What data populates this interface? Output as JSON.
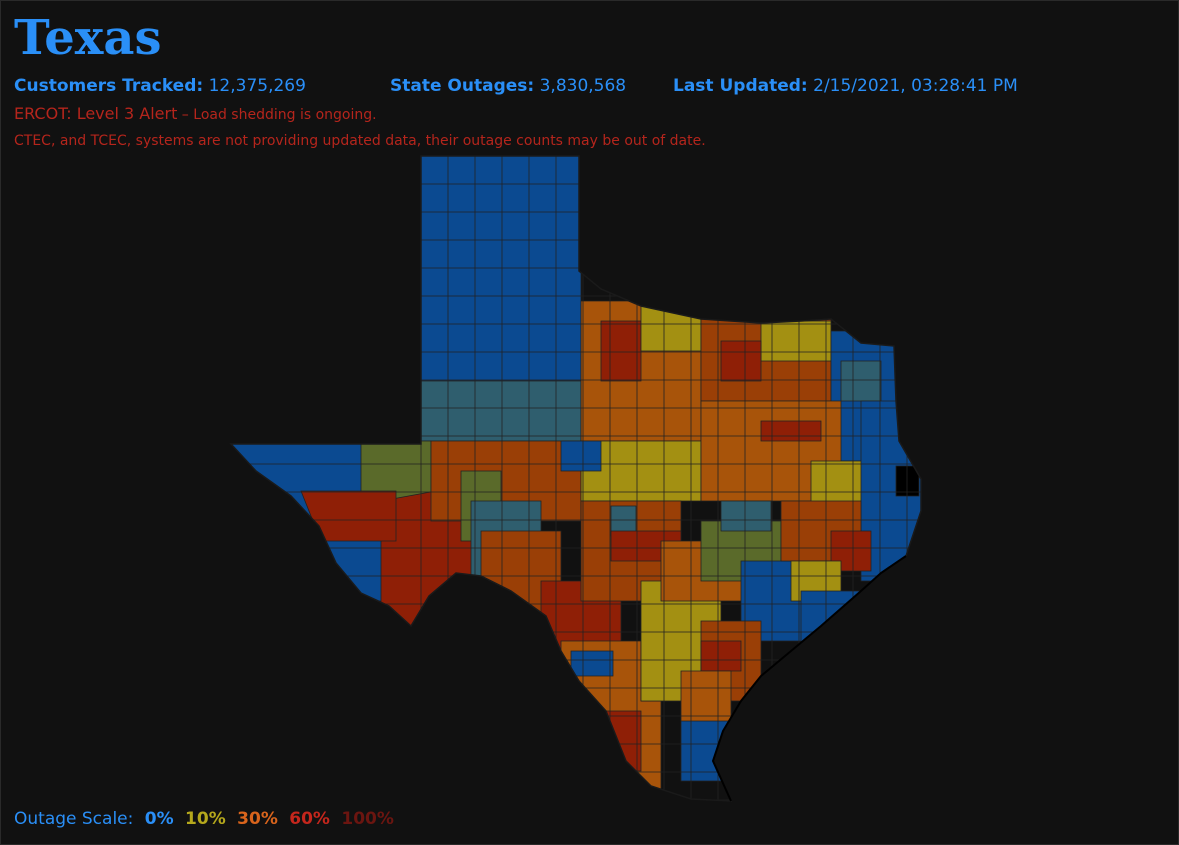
{
  "title": "Texas",
  "stats": {
    "customers_label": "Customers Tracked:",
    "customers_value": "12,375,269",
    "outages_label": "State Outages:",
    "outages_value": "3,830,568",
    "updated_label": "Last Updated:",
    "updated_value": "2/15/2021, 03:28:41 PM"
  },
  "alert": {
    "main": "ERCOT: Level 3 Alert",
    "detail": " – Load shedding is ongoing."
  },
  "stale_notice": "CTEC, and TCEC, systems are not providing updated data, their outage counts may be out of date.",
  "scale": {
    "label": "Outage Scale:",
    "stops": [
      {
        "text": "0%",
        "color": "#2a8ff7"
      },
      {
        "text": "10%",
        "color": "#b5a81c"
      },
      {
        "text": "30%",
        "color": "#d9641c"
      },
      {
        "text": "60%",
        "color": "#c4261c"
      },
      {
        "text": "100%",
        "color": "#6b1510"
      }
    ]
  },
  "map_colors": {
    "blue": "#0b4a91",
    "teal": "#2f5e6e",
    "olive": "#5a6a2a",
    "yellow": "#a39012",
    "orange": "#a8540a",
    "darkorange": "#9a3f06",
    "red": "#8f1f06",
    "black": "#000000",
    "border": "#222222"
  }
}
